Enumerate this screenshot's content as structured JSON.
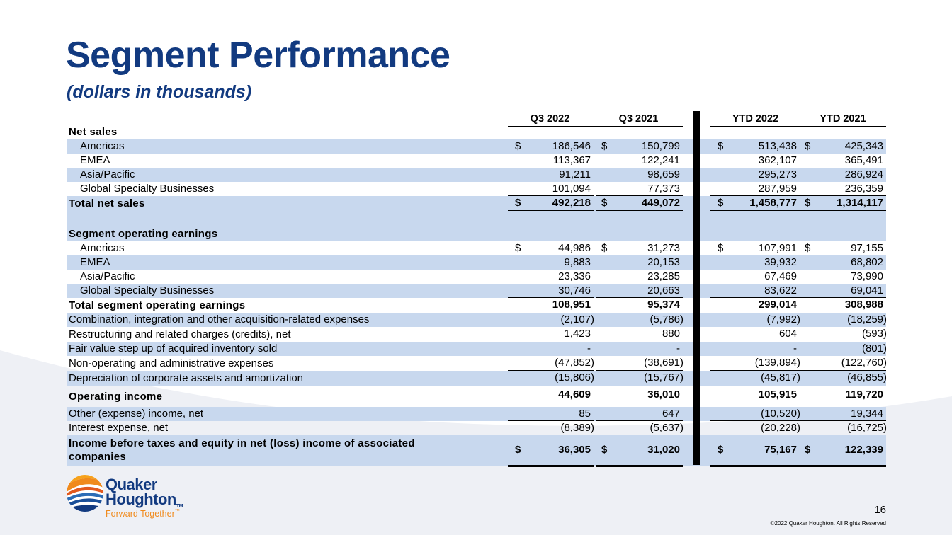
{
  "title": "Segment Performance",
  "subtitle": "(dollars in thousands)",
  "columns": [
    "Q3 2022",
    "Q3 2021",
    "YTD 2022",
    "YTD 2021"
  ],
  "rows": [
    {
      "label": "Net sales",
      "style": "section"
    },
    {
      "label": "Americas",
      "style": "indent",
      "dollar": true,
      "values": [
        "186,546",
        "150,799",
        "513,438",
        "425,343"
      ]
    },
    {
      "label": "EMEA",
      "style": "indent",
      "values": [
        "113,367",
        "122,241",
        "362,107",
        "365,491"
      ]
    },
    {
      "label": "Asia/Pacific",
      "style": "indent",
      "values": [
        "91,211",
        "98,659",
        "295,273",
        "286,924"
      ]
    },
    {
      "label": "Global Specialty Businesses",
      "style": "indent",
      "values": [
        "101,094",
        "77,373",
        "287,959",
        "236,359"
      ]
    },
    {
      "label": "Total net sales",
      "style": "total",
      "dollar": true,
      "values": [
        "492,218",
        "449,072",
        "1,458,777",
        "1,314,117"
      ]
    },
    {
      "label": "",
      "style": "spacer"
    },
    {
      "label": "Segment operating earnings",
      "style": "section"
    },
    {
      "label": "Americas",
      "style": "indent",
      "dollar": true,
      "values": [
        "44,986",
        "31,273",
        "107,991",
        "97,155"
      ]
    },
    {
      "label": "EMEA",
      "style": "indent",
      "values": [
        "9,883",
        "20,153",
        "39,932",
        "68,802"
      ]
    },
    {
      "label": "Asia/Pacific",
      "style": "indent",
      "values": [
        "23,336",
        "23,285",
        "67,469",
        "73,990"
      ]
    },
    {
      "label": "Global Specialty Businesses",
      "style": "indent",
      "values": [
        "30,746",
        "20,663",
        "83,622",
        "69,041"
      ]
    },
    {
      "label": "Total segment operating earnings",
      "style": "total",
      "values": [
        "108,951",
        "95,374",
        "299,014",
        "308,988"
      ]
    },
    {
      "label": "Combination, integration and other acquisition-related expenses",
      "style": "plain",
      "values": [
        "(2,107)",
        "(5,786)",
        "(7,992)",
        "(18,259)"
      ]
    },
    {
      "label": "Restructuring and related charges (credits), net",
      "style": "plain",
      "values": [
        "1,423",
        "880",
        "604",
        "(593)"
      ]
    },
    {
      "label": "Fair value step up of acquired inventory sold",
      "style": "plain",
      "values": [
        "-",
        "-",
        "-",
        "(801)"
      ]
    },
    {
      "label": "Non-operating and administrative expenses",
      "style": "plain",
      "values": [
        "(47,852)",
        "(38,691)",
        "(139,894)",
        "(122,760)"
      ]
    },
    {
      "label": "Depreciation of corporate assets and amortization",
      "style": "plain",
      "values": [
        "(15,806)",
        "(15,767)",
        "(45,817)",
        "(46,855)"
      ]
    },
    {
      "label": "Operating income",
      "style": "total",
      "values": [
        "44,609",
        "36,010",
        "105,915",
        "119,720"
      ]
    },
    {
      "label": "Other (expense) income, net",
      "style": "plain",
      "values": [
        "85",
        "647",
        "(10,520)",
        "19,344"
      ]
    },
    {
      "label": "Interest expense, net",
      "style": "plain",
      "values": [
        "(8,389)",
        "(5,637)",
        "(20,228)",
        "(16,725)"
      ]
    },
    {
      "label": "Income before taxes and equity in net (loss) income of associated companies",
      "style": "final",
      "dollar": true,
      "values": [
        "36,305",
        "31,020",
        "75,167",
        "122,339"
      ]
    }
  ],
  "dollar_sign": "$",
  "logo": {
    "line1": "Quaker",
    "line2": "Houghton",
    "tm": "TM",
    "tagline": "Forward Together",
    "tagline_tm": "™"
  },
  "colors": {
    "brand_blue": "#123a80",
    "brand_orange": "#f08a1c",
    "row_shade": "#c8d8ee"
  },
  "page_number": "16",
  "copyright": "©2022 Quaker Houghton. All Rights Reserved"
}
